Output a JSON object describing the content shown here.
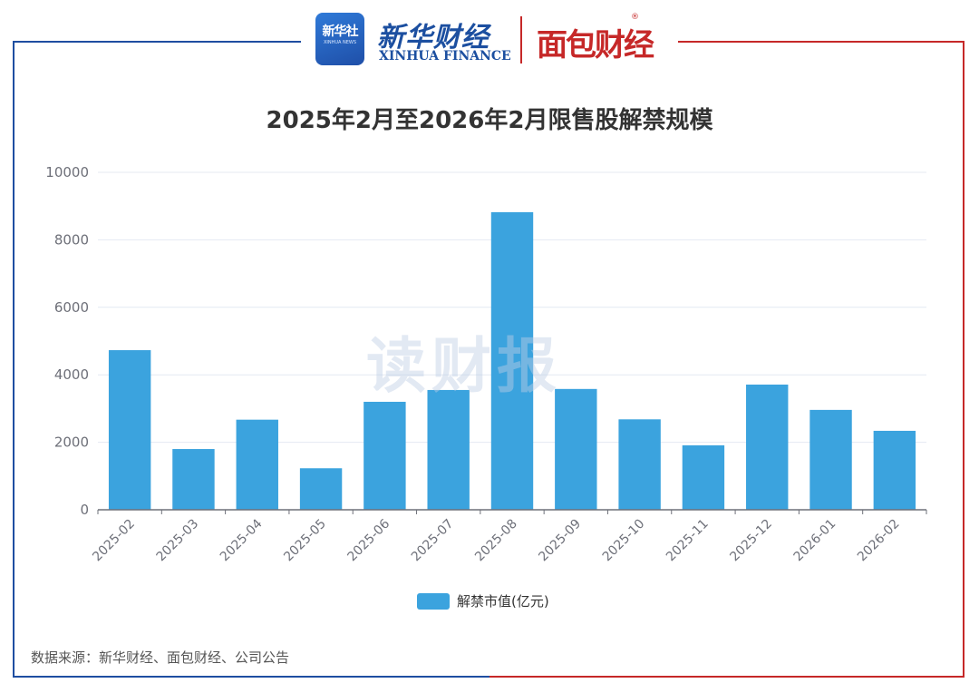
{
  "header": {
    "xinhua_icon_text": "新华社",
    "xinhua_icon_sub": "XINHUA NEWS",
    "xinhua_finance_cn": "新华财经",
    "xinhua_finance_en": "XINHUA FINANCE",
    "mianbao_name": "面包财经",
    "registered_mark": "®"
  },
  "watermark": "读财报",
  "source_note": "数据来源：新华财经、面包财经、公司公告",
  "colors": {
    "bar": "#3ba3de",
    "frame_left": "#1f4ea1",
    "frame_right": "#c62828",
    "grid": "#e4e9f2",
    "axis": "#6e7079",
    "tick_text": "#6e7079"
  },
  "chart_data": {
    "type": "bar",
    "title": "2025年2月至2026年2月限售股解禁规模",
    "categories": [
      "2025-02",
      "2025-03",
      "2025-04",
      "2025-05",
      "2025-06",
      "2025-07",
      "2025-08",
      "2025-09",
      "2025-10",
      "2025-11",
      "2025-12",
      "2026-01",
      "2026-02"
    ],
    "series": [
      {
        "name": "解禁市值(亿元)",
        "values": [
          4730,
          1800,
          2670,
          1230,
          3200,
          3550,
          8820,
          3580,
          2680,
          1910,
          3710,
          2960,
          2340
        ]
      }
    ],
    "ylim": [
      0,
      10000
    ],
    "yticks": [
      0,
      2000,
      4000,
      6000,
      8000,
      10000
    ],
    "grid": true,
    "legend_position": "bottom-center"
  }
}
